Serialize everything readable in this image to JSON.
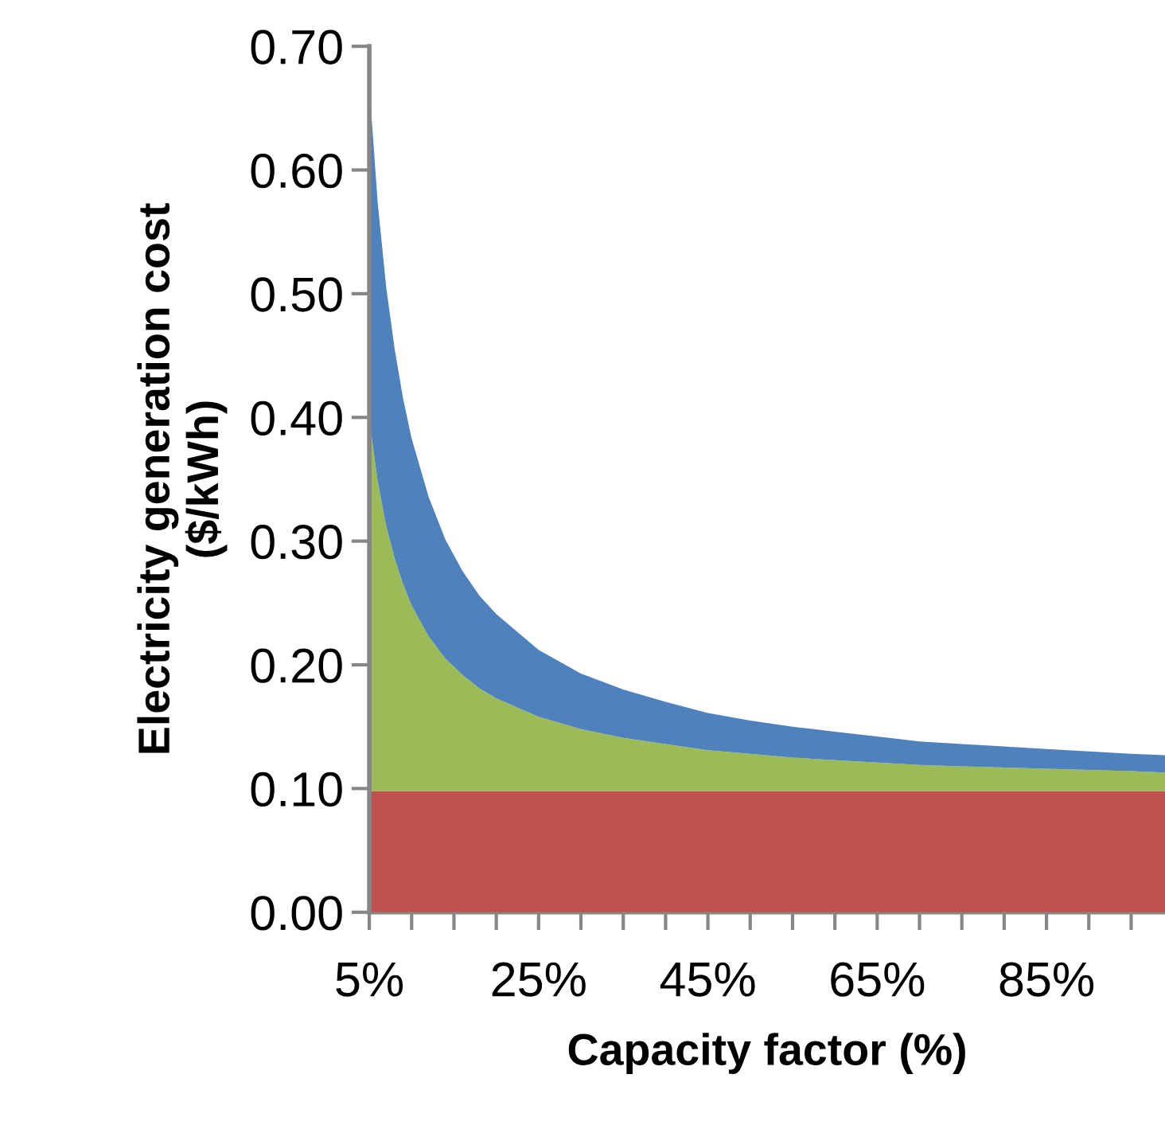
{
  "chart_data": {
    "type": "area",
    "stacked": true,
    "xlabel": "Capacity factor (%)",
    "ylabel": "Electricity generation cost\n($/kWh)",
    "x": [
      5,
      6,
      7,
      8,
      9,
      10,
      12,
      14,
      16,
      18,
      20,
      25,
      30,
      35,
      40,
      45,
      50,
      55,
      60,
      65,
      70,
      75,
      80,
      85,
      90,
      95,
      99
    ],
    "series": [
      {
        "color": "#c0504d",
        "values": [
          0.098,
          0.098,
          0.098,
          0.098,
          0.098,
          0.098,
          0.098,
          0.098,
          0.098,
          0.098,
          0.098,
          0.098,
          0.098,
          0.098,
          0.098,
          0.098,
          0.098,
          0.098,
          0.098,
          0.098,
          0.098,
          0.098,
          0.098,
          0.098,
          0.098,
          0.098,
          0.098
        ]
      },
      {
        "color": "#9bbb59",
        "values": [
          0.3,
          0.25,
          0.214,
          0.188,
          0.167,
          0.15,
          0.125,
          0.107,
          0.094,
          0.083,
          0.075,
          0.06,
          0.05,
          0.043,
          0.038,
          0.033,
          0.03,
          0.027,
          0.025,
          0.023,
          0.021,
          0.02,
          0.019,
          0.018,
          0.017,
          0.016,
          0.015
        ]
      },
      {
        "color": "#4f81bd",
        "values": [
          0.27,
          0.225,
          0.193,
          0.169,
          0.15,
          0.135,
          0.113,
          0.096,
          0.084,
          0.075,
          0.068,
          0.054,
          0.045,
          0.039,
          0.034,
          0.03,
          0.027,
          0.025,
          0.023,
          0.021,
          0.019,
          0.018,
          0.017,
          0.016,
          0.015,
          0.014,
          0.014
        ]
      }
    ],
    "xlim": [
      5,
      99
    ],
    "xticks": [
      {
        "value": 5,
        "label": "5%"
      },
      {
        "value": 10,
        "label": null
      },
      {
        "value": 15,
        "label": null
      },
      {
        "value": 20,
        "label": null
      },
      {
        "value": 25,
        "label": "25%"
      },
      {
        "value": 30,
        "label": null
      },
      {
        "value": 35,
        "label": null
      },
      {
        "value": 40,
        "label": null
      },
      {
        "value": 45,
        "label": "45%"
      },
      {
        "value": 50,
        "label": null
      },
      {
        "value": 55,
        "label": null
      },
      {
        "value": 60,
        "label": null
      },
      {
        "value": 65,
        "label": "65%"
      },
      {
        "value": 70,
        "label": null
      },
      {
        "value": 75,
        "label": null
      },
      {
        "value": 80,
        "label": null
      },
      {
        "value": 85,
        "label": "85%"
      },
      {
        "value": 90,
        "label": null
      },
      {
        "value": 95,
        "label": null
      }
    ],
    "ylim": [
      0,
      0.7
    ],
    "yticks": [
      {
        "value": 0,
        "label": "0.00"
      },
      {
        "value": 0.1,
        "label": "0.10"
      },
      {
        "value": 0.2,
        "label": "0.20"
      },
      {
        "value": 0.3,
        "label": "0.30"
      },
      {
        "value": 0.4,
        "label": "0.40"
      },
      {
        "value": 0.5,
        "label": "0.50"
      },
      {
        "value": 0.6,
        "label": "0.60"
      },
      {
        "value": 0.7,
        "label": "0.70"
      }
    ],
    "grid": false,
    "legend": false
  }
}
